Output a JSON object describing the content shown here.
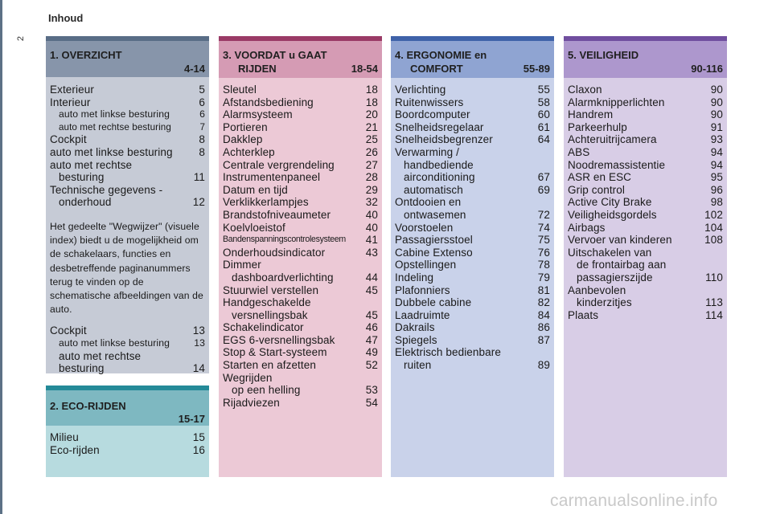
{
  "header": {
    "title": "Inhoud",
    "page_number": "2"
  },
  "watermark": "carmanualsonline.info",
  "colors": {
    "side_bar": "#5d7186",
    "section1": "#596d86",
    "section2": "#248a98",
    "section3": "#9a3a66",
    "section4": "#3f62a9",
    "section5": "#704e9f"
  },
  "s1": {
    "title": "1. OVERZICHT",
    "pages": "4-14",
    "items": [
      {
        "label": "Exterieur",
        "page": "5"
      },
      {
        "label": "Interieur",
        "page": "6"
      },
      {
        "label": "auto met linkse besturing",
        "page": "6"
      },
      {
        "label": "auto met rechtse besturing",
        "page": "7"
      },
      {
        "label": "Cockpit",
        "page": "8"
      },
      {
        "label": "auto met linkse besturing",
        "page": "8"
      },
      {
        "label": "auto met rechtse",
        "label2": "besturing",
        "page": "11"
      },
      {
        "label": "Technische gegevens -",
        "label2": "onderhoud",
        "page": "12"
      }
    ],
    "note": "Het gedeelte \"Wegwijzer\" (visuele index) biedt u de mogelijkheid om de schakelaars, functies en desbetreffende paginanummers terug te vinden op de schematische afbeeldingen van de auto.",
    "items2": [
      {
        "label": "Cockpit",
        "page": "13"
      },
      {
        "label": "auto met linkse besturing",
        "page": "13"
      },
      {
        "label": "auto met rechtse",
        "label2": "besturing",
        "page": "14"
      }
    ]
  },
  "s2": {
    "title": "2. ECO-RIJDEN",
    "pages": "15-17",
    "items": [
      {
        "label": "Milieu",
        "page": "15"
      },
      {
        "label": "Eco-rijden",
        "page": "16"
      }
    ]
  },
  "s3": {
    "title": "3. VOORDAT u GAAT",
    "title2": "RIJDEN",
    "pages": "18-54",
    "items": [
      {
        "label": "Sleutel",
        "page": "18"
      },
      {
        "label": "Afstandsbediening",
        "page": "18"
      },
      {
        "label": "Alarmsysteem",
        "page": "20"
      },
      {
        "label": "Portieren",
        "page": "21"
      },
      {
        "label": "Dakklep",
        "page": "25"
      },
      {
        "label": "Achterklep",
        "page": "26"
      },
      {
        "label": "Centrale vergrendeling",
        "page": "27"
      },
      {
        "label": "Instrumentenpaneel",
        "page": "28"
      },
      {
        "label": "Datum en tijd",
        "page": "29"
      },
      {
        "label": "Verklikkerlampjes",
        "page": "32"
      },
      {
        "label": "Brandstofniveaumeter",
        "page": "40"
      },
      {
        "label": "Koelvloeistof",
        "page": "40"
      },
      {
        "label": "Bandenspanningscontrolesysteem",
        "page": "41"
      },
      {
        "label": "Onderhoudsindicator",
        "page": "43"
      },
      {
        "label": "Dimmer",
        "label2": "dashboardverlichting",
        "page": "44"
      },
      {
        "label": "Stuurwiel verstellen",
        "page": "45"
      },
      {
        "label": "Handgeschakelde",
        "label2": "versnellingsbak",
        "page": "45"
      },
      {
        "label": "Schakelindicator",
        "page": "46"
      },
      {
        "label": "EGS 6-versnellingsbak",
        "page": "47"
      },
      {
        "label": "Stop & Start-systeem",
        "page": "49"
      },
      {
        "label": "Starten en afzetten",
        "page": "52"
      },
      {
        "label": "Wegrijden",
        "label2": "op een helling",
        "page": "53"
      },
      {
        "label": "Rijadviezen",
        "page": "54"
      }
    ]
  },
  "s4": {
    "title": "4. ERGONOMIE en",
    "title2": "COMFORT",
    "pages": "55-89",
    "items": [
      {
        "label": "Verlichting",
        "page": "55"
      },
      {
        "label": "Ruitenwissers",
        "page": "58"
      },
      {
        "label": "Boordcomputer",
        "page": "60"
      },
      {
        "label": "Snelheidsregelaar",
        "page": "61"
      },
      {
        "label": "Snelheidsbegrenzer",
        "page": "64"
      },
      {
        "label": "Verwarming /",
        "label2": "handbediende",
        "label3": "airconditioning",
        "page": "67"
      },
      {
        "label": "automatisch",
        "page": "69"
      },
      {
        "label": "Ontdooien en",
        "label2": "ontwasemen",
        "page": "72"
      },
      {
        "label": "Voorstoelen",
        "page": "74"
      },
      {
        "label": "Passagiersstoel",
        "page": "75"
      },
      {
        "label": "Cabine Extenso",
        "page": "76"
      },
      {
        "label": "Opstellingen",
        "page": "78"
      },
      {
        "label": "Indeling",
        "page": "79"
      },
      {
        "label": "Plafonniers",
        "page": "81"
      },
      {
        "label": "Dubbele cabine",
        "page": "82"
      },
      {
        "label": "Laadruimte",
        "page": "84"
      },
      {
        "label": "Dakrails",
        "page": "86"
      },
      {
        "label": "Spiegels",
        "page": "87"
      },
      {
        "label": "Elektrisch bedienbare",
        "label2": "ruiten",
        "page": "89"
      }
    ]
  },
  "s5": {
    "title": "5. VEILIGHEID",
    "pages": "90-116",
    "items": [
      {
        "label": "Claxon",
        "page": "90"
      },
      {
        "label": "Alarmknipperlichten",
        "page": "90"
      },
      {
        "label": "Handrem",
        "page": "90"
      },
      {
        "label": "Parkeerhulp",
        "page": "91"
      },
      {
        "label": "Achteruitrijcamera",
        "page": "93"
      },
      {
        "label": "ABS",
        "page": "94"
      },
      {
        "label": "Noodremassistentie",
        "page": "94"
      },
      {
        "label": "ASR en ESC",
        "page": "95"
      },
      {
        "label": "Grip control",
        "page": "96"
      },
      {
        "label": "Active City Brake",
        "page": "98"
      },
      {
        "label": "Veiligheidsgordels",
        "page": "102"
      },
      {
        "label": "Airbags",
        "page": "104"
      },
      {
        "label": "Vervoer van kinderen",
        "page": "108"
      },
      {
        "label": "Uitschakelen van",
        "label2": "de frontairbag aan",
        "label3": "passagierszijde",
        "page": "110"
      },
      {
        "label": "Aanbevolen",
        "label2": "kinderzitjes",
        "page": "113"
      },
      {
        "label": "Plaats",
        "page": "114"
      }
    ]
  }
}
